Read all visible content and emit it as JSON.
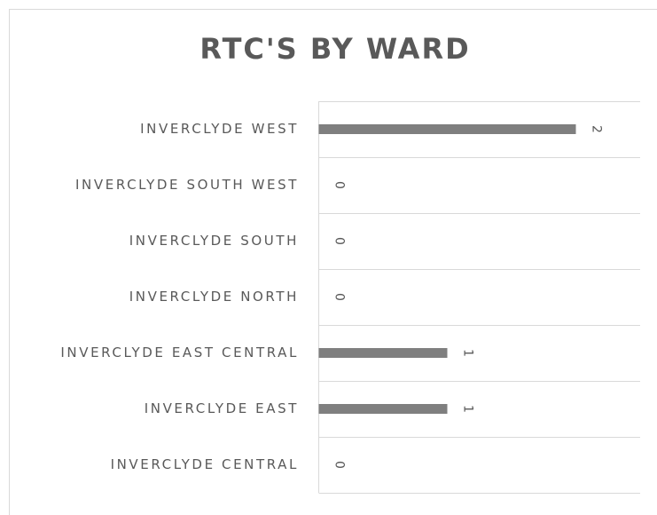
{
  "chart_data": {
    "type": "hbar",
    "title": "RTC'S BY WARD",
    "categories": [
      "INVERCLYDE WEST",
      "INVERCLYDE SOUTH WEST",
      "INVERCLYDE SOUTH",
      "INVERCLYDE NORTH",
      "INVERCLYDE EAST CENTRAL",
      "INVERCLYDE EAST",
      "INVERCLYDE CENTRAL"
    ],
    "values": [
      2,
      0,
      0,
      0,
      1,
      1,
      0
    ],
    "color": "#7f7f7f",
    "xlim": [
      0,
      2.5
    ]
  }
}
